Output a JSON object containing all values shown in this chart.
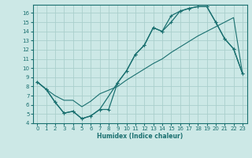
{
  "xlabel": "Humidex (Indice chaleur)",
  "bg_color": "#cce8e6",
  "grid_color": "#aacfcc",
  "line_color": "#1a7070",
  "xlim": [
    -0.5,
    23.5
  ],
  "ylim": [
    4,
    16.9
  ],
  "xticks": [
    0,
    1,
    2,
    3,
    4,
    5,
    6,
    7,
    8,
    9,
    10,
    11,
    12,
    13,
    14,
    15,
    16,
    17,
    18,
    19,
    20,
    21,
    22,
    23
  ],
  "yticks": [
    4,
    5,
    6,
    7,
    8,
    9,
    10,
    11,
    12,
    13,
    14,
    15,
    16
  ],
  "curve1_x": [
    0,
    1,
    2,
    3,
    4,
    5,
    6,
    7,
    8,
    9,
    10,
    11,
    12,
    13,
    14,
    15,
    16,
    17,
    18,
    19,
    20,
    21,
    22,
    23
  ],
  "curve1_y": [
    8.5,
    7.7,
    6.3,
    5.1,
    5.3,
    4.5,
    4.8,
    5.5,
    5.5,
    8.4,
    9.7,
    11.5,
    12.5,
    14.4,
    14.0,
    15.7,
    16.2,
    16.5,
    16.7,
    16.7,
    15.0,
    13.2,
    12.1,
    9.4
  ],
  "curve2_x": [
    0,
    1,
    2,
    3,
    4,
    5,
    6,
    7,
    9,
    10,
    11,
    12,
    13,
    14,
    15,
    16,
    17,
    18,
    19,
    20,
    21,
    22,
    23
  ],
  "curve2_y": [
    8.5,
    7.7,
    6.3,
    5.1,
    5.3,
    4.5,
    4.8,
    5.5,
    8.4,
    9.7,
    11.5,
    12.5,
    14.4,
    14.0,
    15.0,
    16.2,
    16.5,
    16.7,
    16.7,
    15.0,
    13.2,
    12.1,
    9.4
  ],
  "curve3_x": [
    0,
    1,
    2,
    3,
    4,
    5,
    6,
    7,
    8,
    9,
    10,
    11,
    12,
    13,
    14,
    15,
    16,
    17,
    18,
    19,
    20,
    21,
    22,
    23
  ],
  "curve3_y": [
    8.5,
    7.7,
    7.0,
    6.5,
    6.5,
    5.8,
    6.4,
    7.2,
    7.6,
    8.0,
    8.7,
    9.3,
    9.9,
    10.5,
    11.0,
    11.7,
    12.3,
    12.9,
    13.5,
    14.0,
    14.5,
    15.0,
    15.5,
    9.4
  ]
}
